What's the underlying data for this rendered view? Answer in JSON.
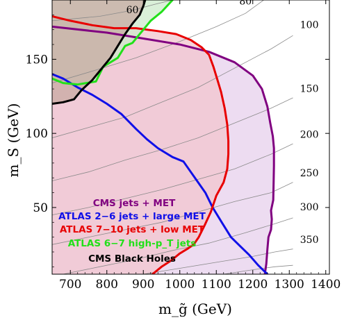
{
  "chart_data": {
    "type": "line",
    "xlabel": "m_g̃ (GeV)",
    "ylabel": "m_S (GeV)",
    "xlim": [
      650,
      1410
    ],
    "ylim": [
      5,
      190
    ],
    "x_ticks": [
      700,
      800,
      900,
      1000,
      1100,
      1200,
      1300,
      1400
    ],
    "y_ticks": [
      50,
      100,
      150
    ],
    "x_tick_labels": [
      "700",
      "800",
      "900",
      "1000",
      "1100",
      "1200",
      "1300",
      "1400"
    ],
    "y_tick_labels": [
      "50",
      "100",
      "150"
    ],
    "grid": false,
    "legend_placement": "bottom-left",
    "contour_labels": [
      {
        "text": "60",
        "x": 870,
        "y": 181
      },
      {
        "text": "80",
        "x": 1180,
        "y": 187
      },
      {
        "text": "100",
        "x": 1355,
        "y": 171
      },
      {
        "text": "150",
        "x": 1355,
        "y": 128
      },
      {
        "text": "200",
        "x": 1355,
        "y": 97
      },
      {
        "text": "250",
        "x": 1355,
        "y": 71
      },
      {
        "text": "300",
        "x": 1355,
        "y": 48
      },
      {
        "text": "350",
        "x": 1355,
        "y": 26
      }
    ],
    "contours": [
      {
        "label": "60",
        "points": [
          [
            650,
            176
          ],
          [
            780,
            179
          ],
          [
            870,
            183
          ],
          [
            930,
            187
          ],
          [
            980,
            190
          ]
        ]
      },
      {
        "label": "80",
        "points": [
          [
            650,
            134
          ],
          [
            760,
            142
          ],
          [
            880,
            151
          ],
          [
            1000,
            162
          ],
          [
            1100,
            172
          ],
          [
            1180,
            181
          ],
          [
            1230,
            190
          ]
        ]
      },
      {
        "label": "100",
        "points": [
          [
            650,
            97
          ],
          [
            750,
            104
          ],
          [
            850,
            111
          ],
          [
            950,
            121
          ],
          [
            1050,
            131
          ],
          [
            1150,
            144
          ],
          [
            1250,
            157
          ],
          [
            1310,
            166
          ]
        ]
      },
      {
        "label": "150",
        "points": [
          [
            650,
            68
          ],
          [
            750,
            74
          ],
          [
            850,
            82
          ],
          [
            950,
            89
          ],
          [
            1050,
            97
          ],
          [
            1150,
            107
          ],
          [
            1250,
            117
          ],
          [
            1310,
            124
          ]
        ]
      },
      {
        "label": "200",
        "points": [
          [
            650,
            45
          ],
          [
            750,
            50
          ],
          [
            850,
            56
          ],
          [
            950,
            62
          ],
          [
            1050,
            69
          ],
          [
            1150,
            76
          ],
          [
            1250,
            86
          ],
          [
            1310,
            93
          ]
        ]
      },
      {
        "label": "250",
        "points": [
          [
            650,
            25
          ],
          [
            750,
            30
          ],
          [
            850,
            35
          ],
          [
            950,
            40
          ],
          [
            1050,
            47
          ],
          [
            1150,
            54
          ],
          [
            1250,
            60
          ],
          [
            1310,
            67
          ]
        ]
      },
      {
        "label": "300",
        "points": [
          [
            680,
            5
          ],
          [
            780,
            10
          ],
          [
            880,
            15
          ],
          [
            980,
            21
          ],
          [
            1080,
            26
          ],
          [
            1180,
            33
          ],
          [
            1260,
            39
          ],
          [
            1310,
            43
          ]
        ]
      },
      {
        "label": "350",
        "points": [
          [
            900,
            5
          ],
          [
            1000,
            9
          ],
          [
            1100,
            13
          ],
          [
            1200,
            17
          ],
          [
            1260,
            20
          ],
          [
            1310,
            22
          ]
        ]
      },
      {
        "label": "",
        "points": [
          [
            1120,
            5
          ],
          [
            1200,
            8
          ],
          [
            1260,
            10
          ],
          [
            1310,
            11
          ]
        ]
      }
    ],
    "series": [
      {
        "name": "CMS jets + MET",
        "color": "#800080",
        "fill": "#ead6ee",
        "points": [
          [
            650,
            172
          ],
          [
            800,
            168
          ],
          [
            900,
            164
          ],
          [
            1000,
            160
          ],
          [
            1080,
            155
          ],
          [
            1150,
            148
          ],
          [
            1200,
            139
          ],
          [
            1225,
            130
          ],
          [
            1240,
            118
          ],
          [
            1248,
            107
          ],
          [
            1255,
            98
          ],
          [
            1258,
            90
          ],
          [
            1258,
            78
          ],
          [
            1257,
            66
          ],
          [
            1256,
            55
          ],
          [
            1250,
            48
          ],
          [
            1252,
            42
          ],
          [
            1250,
            35
          ],
          [
            1243,
            30
          ],
          [
            1240,
            22
          ],
          [
            1237,
            12
          ],
          [
            1233,
            5
          ]
        ]
      },
      {
        "name": "ATLAS 2−6 jets + large MET",
        "color": "#1010e8",
        "fill": "none",
        "points": [
          [
            650,
            140
          ],
          [
            680,
            137
          ],
          [
            720,
            131
          ],
          [
            760,
            126
          ],
          [
            800,
            120
          ],
          [
            840,
            113
          ],
          [
            880,
            103
          ],
          [
            910,
            96
          ],
          [
            940,
            90
          ],
          [
            980,
            84
          ],
          [
            1010,
            81
          ],
          [
            1030,
            74
          ],
          [
            1050,
            67
          ],
          [
            1070,
            60
          ],
          [
            1090,
            50
          ],
          [
            1115,
            40
          ],
          [
            1140,
            30
          ],
          [
            1165,
            24
          ],
          [
            1190,
            18
          ],
          [
            1215,
            11
          ],
          [
            1240,
            5
          ]
        ]
      },
      {
        "name": "ATLAS 7−10 jets + low MET",
        "color": "#e80000",
        "fill": "#f2c5cd",
        "points": [
          [
            650,
            179
          ],
          [
            700,
            176
          ],
          [
            760,
            173
          ],
          [
            820,
            171
          ],
          [
            880,
            171
          ],
          [
            940,
            169
          ],
          [
            990,
            167
          ],
          [
            1030,
            163
          ],
          [
            1060,
            158
          ],
          [
            1080,
            153
          ],
          [
            1092,
            145
          ],
          [
            1102,
            137
          ],
          [
            1113,
            128
          ],
          [
            1123,
            117
          ],
          [
            1130,
            106
          ],
          [
            1133,
            95
          ],
          [
            1133,
            86
          ],
          [
            1130,
            76
          ],
          [
            1120,
            67
          ],
          [
            1100,
            58
          ],
          [
            1085,
            47
          ],
          [
            1068,
            38
          ],
          [
            1052,
            30
          ],
          [
            1038,
            25
          ],
          [
            1020,
            22
          ],
          [
            1000,
            19
          ],
          [
            975,
            14
          ],
          [
            950,
            10
          ],
          [
            925,
            5
          ]
        ]
      },
      {
        "name": "ATLAS 6−7 high-p_T jets",
        "color": "#22e01a",
        "fill": "#cdebcc",
        "points": [
          [
            650,
            137
          ],
          [
            680,
            134
          ],
          [
            720,
            133
          ],
          [
            770,
            135
          ],
          [
            790,
            145
          ],
          [
            810,
            148
          ],
          [
            830,
            151
          ],
          [
            850,
            159
          ],
          [
            870,
            161
          ],
          [
            900,
            170
          ],
          [
            920,
            176
          ],
          [
            950,
            182
          ],
          [
            980,
            190
          ]
        ]
      },
      {
        "name": "CMS Black Holes",
        "color": "#000000",
        "fill": "#c7a9a2",
        "points": [
          [
            650,
            120
          ],
          [
            680,
            121
          ],
          [
            710,
            123
          ],
          [
            730,
            129
          ],
          [
            760,
            136
          ],
          [
            790,
            145
          ],
          [
            810,
            151
          ],
          [
            830,
            159
          ],
          [
            850,
            167
          ],
          [
            870,
            174
          ],
          [
            890,
            180
          ],
          [
            900,
            186
          ],
          [
            905,
            190
          ]
        ]
      }
    ]
  }
}
